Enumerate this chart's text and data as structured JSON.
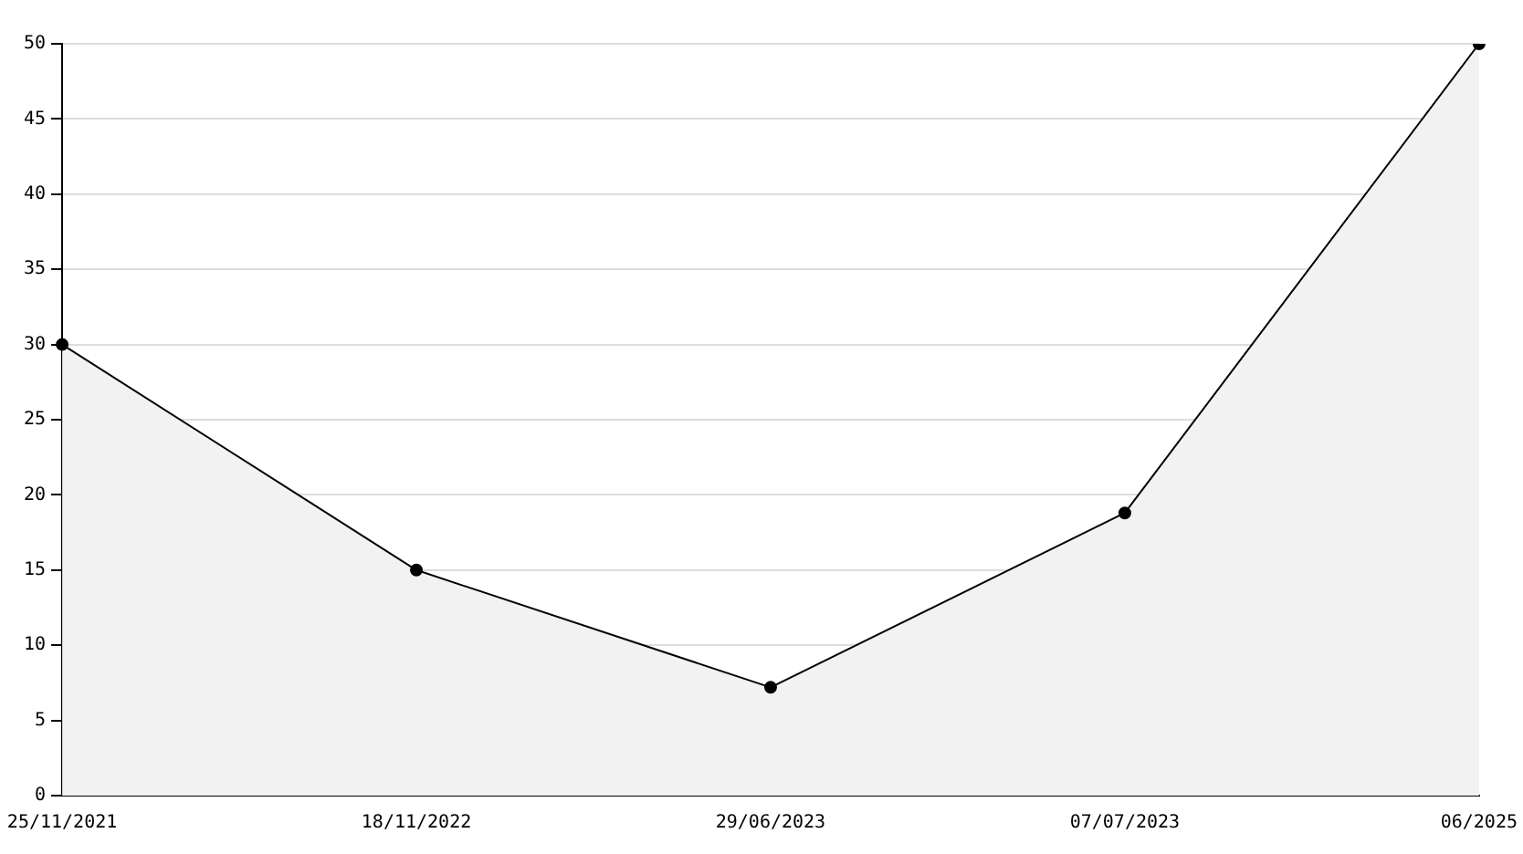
{
  "chart_data": {
    "type": "area",
    "categories": [
      "25/11/2021",
      "18/11/2022",
      "29/06/2023",
      "07/07/2023",
      "06/2025"
    ],
    "series": [
      {
        "color": "#000000",
        "values": [
          30,
          15,
          7.2,
          18.8,
          50
        ]
      }
    ],
    "ylim": [
      0,
      50
    ],
    "yticks": [
      0,
      5,
      10,
      15,
      20,
      25,
      30,
      35,
      40,
      45,
      50
    ],
    "grid": "y",
    "legend": false,
    "marker": "circle",
    "line_style": "solid"
  }
}
